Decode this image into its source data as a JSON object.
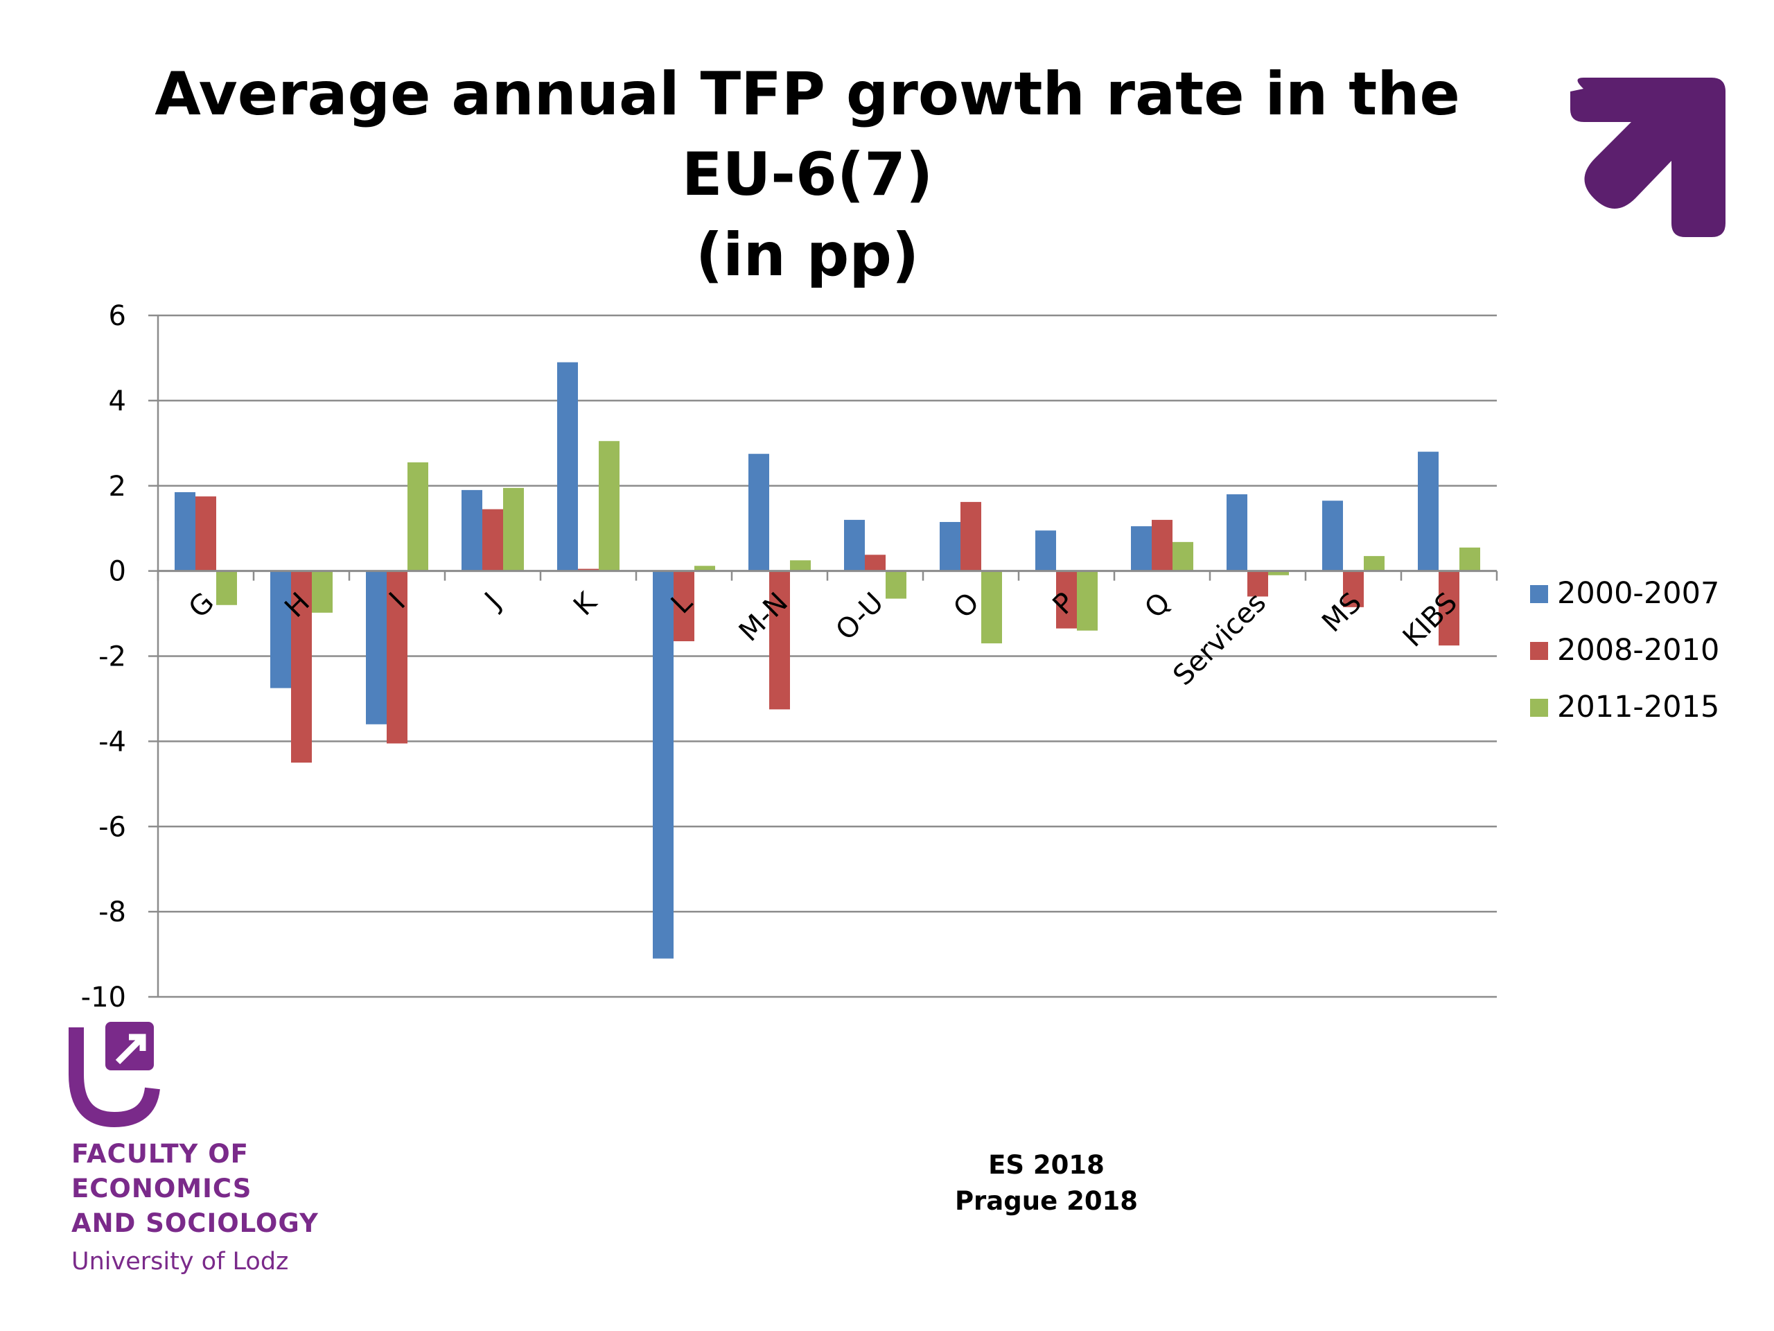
{
  "slide": {
    "title_line1": "Average annual TFP growth rate in the EU-6(7)",
    "title_line2": "(in pp)"
  },
  "logo": {
    "line1": "FACULTY OF",
    "line2": "ECONOMICS",
    "line3": "AND SOCIOLOGY",
    "line4": "University of Lodz",
    "color": "#7a2a8a"
  },
  "footer": {
    "line1": "ES 2018",
    "line2": "Prague 2018"
  },
  "chart_data": {
    "type": "bar",
    "title": "Average annual TFP growth rate in the EU-6(7) (in pp)",
    "categories": [
      "G",
      "H",
      "I",
      "J",
      "K",
      "L",
      "M-N",
      "O-U",
      "O",
      "P",
      "Q",
      "Services",
      "MS",
      "KIBS"
    ],
    "series": [
      {
        "name": "2000-2007",
        "color": "#4f81bd",
        "values": [
          1.85,
          -2.75,
          -3.6,
          1.9,
          4.9,
          -9.1,
          2.75,
          1.2,
          1.15,
          0.95,
          1.05,
          1.8,
          1.65,
          2.8
        ]
      },
      {
        "name": "2008-2010",
        "color": "#c0504d",
        "values": [
          1.75,
          -4.5,
          -4.05,
          1.45,
          0.05,
          -1.65,
          -3.25,
          0.38,
          1.62,
          -1.35,
          1.2,
          -0.6,
          -0.85,
          -1.75
        ]
      },
      {
        "name": "2011-2015",
        "color": "#9bbb59",
        "values": [
          -0.8,
          -0.98,
          2.55,
          1.95,
          3.05,
          0.12,
          0.25,
          -0.65,
          -1.7,
          -1.4,
          0.68,
          -0.1,
          0.35,
          0.55
        ]
      }
    ],
    "ylim": [
      -10,
      6
    ],
    "yticks": [
      "6",
      "4",
      "2",
      "0",
      "-2",
      "-4",
      "-6",
      "-8",
      "-10"
    ],
    "grid": true,
    "legend_position": "right"
  }
}
